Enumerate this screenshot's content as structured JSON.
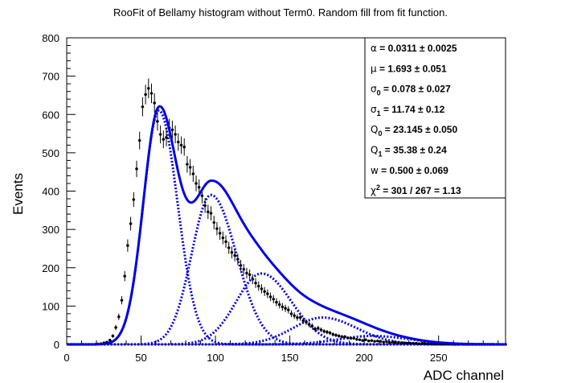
{
  "chart_data": {
    "type": "scatter",
    "title": "RooFit of Bellamy histogram without Term0. Random fill from fit function.",
    "xlabel": "ADC channel",
    "ylabel": "Events",
    "xlim": [
      0,
      295
    ],
    "ylim": [
      0,
      800
    ],
    "xticks": [
      "0",
      "50",
      "100",
      "150",
      "200",
      "250"
    ],
    "yticks": [
      "0",
      "100",
      "200",
      "300",
      "400",
      "500",
      "600",
      "700",
      "800"
    ],
    "grid": false,
    "legend": "none",
    "fit_parameters": [
      {
        "sym": "α",
        "sub": "",
        "sup": "",
        "text": " =  0.0311 ± 0.0025"
      },
      {
        "sym": "μ",
        "sub": "",
        "sup": "",
        "text": " =  1.693 ± 0.051"
      },
      {
        "sym": "σ",
        "sub": "0",
        "sup": "",
        "text": " =  0.078 ± 0.027"
      },
      {
        "sym": "σ",
        "sub": "1",
        "sup": "",
        "text": " =  11.74 ± 0.12"
      },
      {
        "sym": "Q",
        "sub": "0",
        "sup": "",
        "text": " =  23.145 ± 0.050"
      },
      {
        "sym": "Q",
        "sub": "1",
        "sup": "",
        "text": " =  35.38 ± 0.24"
      },
      {
        "sym": "w",
        "sub": "",
        "sup": "",
        "text": " =  0.500 ± 0.069"
      },
      {
        "sym": "χ",
        "sub": "",
        "sup": "2",
        "text": " =  301 / 267 = 1.13"
      }
    ],
    "components": [
      {
        "peak_x": 62,
        "peak_y": 610,
        "sigma_low": 10.5,
        "sigma_high": 12.5
      },
      {
        "peak_x": 97,
        "peak_y": 390,
        "sigma_low": 13,
        "sigma_high": 17
      },
      {
        "peak_x": 131,
        "peak_y": 185,
        "sigma_low": 17,
        "sigma_high": 20
      },
      {
        "peak_x": 172,
        "peak_y": 70,
        "sigma_low": 20,
        "sigma_high": 23
      },
      {
        "peak_x": 205,
        "peak_y": 22,
        "sigma_low": 22,
        "sigma_high": 26
      }
    ],
    "data_points": {
      "x_start": 1,
      "x_step": 2,
      "y": [
        0,
        0,
        0,
        0,
        0,
        0,
        0,
        0,
        0,
        0,
        1,
        2,
        4,
        6,
        11,
        22,
        44,
        72,
        115,
        178,
        258,
        315,
        378,
        458,
        532,
        620,
        652,
        668,
        655,
        630,
        582,
        548,
        535,
        540,
        565,
        560,
        548,
        528,
        520,
        515,
        470,
        462,
        445,
        420,
        410,
        388,
        362,
        346,
        342,
        318,
        302,
        290,
        278,
        268,
        252,
        240,
        232,
        222,
        206,
        196,
        186,
        182,
        170,
        160,
        152,
        145,
        138,
        132,
        124,
        118,
        110,
        104,
        98,
        94,
        90,
        80,
        75,
        70,
        70,
        62,
        58,
        52,
        48,
        40,
        42,
        38,
        34,
        32,
        30,
        26,
        24,
        22,
        20,
        20,
        17,
        16,
        16,
        13,
        12,
        10,
        12,
        9,
        10,
        8,
        9,
        8,
        6,
        7,
        5,
        6,
        5,
        5,
        4,
        4,
        3,
        3,
        3,
        3,
        2,
        3,
        2,
        2,
        2,
        1,
        2,
        1,
        1,
        1,
        1,
        1,
        0,
        0,
        1,
        0,
        0,
        0,
        0,
        0,
        0,
        0,
        0,
        0,
        0,
        0,
        0,
        0,
        0,
        0
      ]
    }
  }
}
